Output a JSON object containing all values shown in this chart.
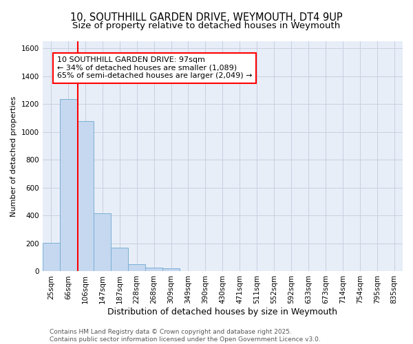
{
  "title_line1": "10, SOUTHHILL GARDEN DRIVE, WEYMOUTH, DT4 9UP",
  "title_line2": "Size of property relative to detached houses in Weymouth",
  "xlabel": "Distribution of detached houses by size in Weymouth",
  "ylabel": "Number of detached properties",
  "categories": [
    "25sqm",
    "66sqm",
    "106sqm",
    "147sqm",
    "187sqm",
    "228sqm",
    "268sqm",
    "309sqm",
    "349sqm",
    "390sqm",
    "430sqm",
    "471sqm",
    "511sqm",
    "552sqm",
    "592sqm",
    "633sqm",
    "673sqm",
    "714sqm",
    "754sqm",
    "795sqm",
    "835sqm"
  ],
  "values": [
    205,
    1235,
    1080,
    415,
    170,
    50,
    25,
    20,
    0,
    0,
    0,
    0,
    0,
    0,
    0,
    0,
    0,
    0,
    0,
    0,
    0
  ],
  "bar_color": "#c5d8f0",
  "bar_edge_color": "#7aafd4",
  "ylim": [
    0,
    1650
  ],
  "yticks": [
    0,
    200,
    400,
    600,
    800,
    1000,
    1200,
    1400,
    1600
  ],
  "grid_color": "#c8d0e0",
  "background_color": "#e8eef8",
  "red_line_x": 1.56,
  "annotation_text": "10 SOUTHHILL GARDEN DRIVE: 97sqm\n← 34% of detached houses are smaller (1,089)\n65% of semi-detached houses are larger (2,049) →",
  "footer_line1": "Contains HM Land Registry data © Crown copyright and database right 2025.",
  "footer_line2": "Contains public sector information licensed under the Open Government Licence v3.0.",
  "title_fontsize": 10.5,
  "subtitle_fontsize": 9.5,
  "xlabel_fontsize": 9,
  "ylabel_fontsize": 8,
  "tick_fontsize": 7.5,
  "annotation_fontsize": 8,
  "footer_fontsize": 6.5
}
